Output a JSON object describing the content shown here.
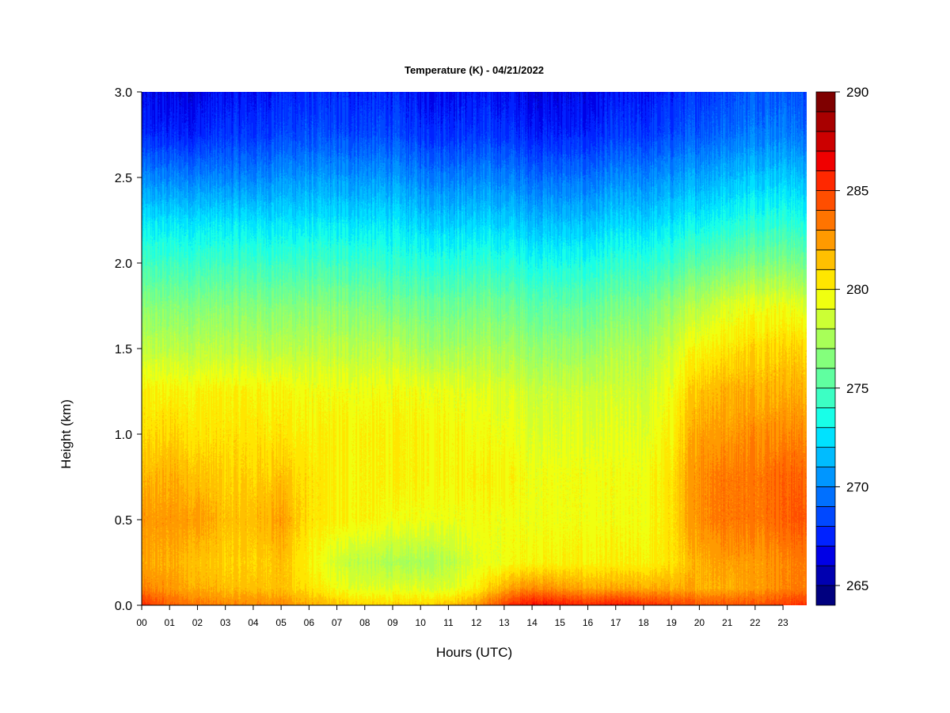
{
  "chart_data": {
    "type": "heatmap",
    "title": "Temperature (K) - 04/21/2022",
    "xlabel": "Hours (UTC)",
    "ylabel": "Height (km)",
    "x_ticks": [
      "00",
      "01",
      "02",
      "03",
      "04",
      "05",
      "06",
      "07",
      "08",
      "09",
      "10",
      "11",
      "12",
      "13",
      "14",
      "15",
      "16",
      "17",
      "18",
      "19",
      "20",
      "21",
      "22",
      "23"
    ],
    "xlim": [
      0,
      23.85
    ],
    "y_ticks": [
      "0.0",
      "0.5",
      "1.0",
      "1.5",
      "2.0",
      "2.5",
      "3.0"
    ],
    "ylim": [
      0,
      3.0
    ],
    "colorbar": {
      "min": 264,
      "max": 290,
      "step": 1,
      "tick_labels": [
        "265",
        "270",
        "275",
        "280",
        "285",
        "290"
      ],
      "tick_values": [
        265,
        270,
        275,
        280,
        285,
        290
      ],
      "colors": [
        "#00007f",
        "#0000b0",
        "#0000e6",
        "#0022ff",
        "#0048ff",
        "#0070ff",
        "#0096ff",
        "#00bcff",
        "#00e2ff",
        "#18ffe8",
        "#3cffc4",
        "#60ffa0",
        "#84ff7c",
        "#a8ff58",
        "#ccff34",
        "#f0ff10",
        "#ffe600",
        "#ffc000",
        "#ff9a00",
        "#ff7400",
        "#ff4e00",
        "#ff2800",
        "#f00000",
        "#cc0000",
        "#a80000",
        "#7f0000"
      ]
    },
    "temperature_grid": {
      "description_units": "K",
      "heights_km": [
        0.0,
        0.1,
        0.25,
        0.5,
        0.75,
        1.0,
        1.25,
        1.5,
        1.75,
        2.0,
        2.25,
        2.5,
        2.75,
        3.0
      ],
      "hours": [
        0,
        1,
        2,
        3,
        4,
        5,
        6,
        7,
        8,
        9,
        10,
        11,
        12,
        13,
        14,
        15,
        16,
        17,
        18,
        19,
        20,
        21,
        22,
        23,
        23.85
      ],
      "values": [
        [
          285.5,
          284.0,
          283.5,
          283.0,
          283.0,
          283.0,
          282.0,
          281.5,
          281.0,
          281.0,
          281.0,
          281.5,
          282.5,
          285.0,
          286.5,
          286.0,
          285.5,
          286.0,
          285.5,
          285.0,
          284.5,
          284.5,
          284.5,
          285.0,
          285.5
        ],
        [
          283.0,
          282.5,
          282.0,
          281.5,
          281.5,
          281.5,
          280.5,
          279.5,
          279.0,
          279.0,
          279.0,
          279.0,
          280.0,
          282.0,
          283.0,
          282.5,
          282.0,
          282.0,
          282.0,
          282.0,
          282.0,
          282.0,
          282.5,
          283.0,
          283.5
        ],
        [
          282.0,
          282.0,
          281.5,
          281.0,
          281.0,
          281.5,
          280.0,
          278.5,
          278.0,
          277.5,
          277.5,
          278.0,
          279.0,
          279.5,
          280.0,
          280.0,
          280.0,
          280.0,
          280.0,
          280.5,
          282.0,
          282.5,
          282.5,
          283.0,
          283.5
        ],
        [
          282.5,
          282.5,
          282.5,
          281.5,
          281.5,
          282.5,
          280.5,
          280.0,
          280.0,
          279.5,
          279.5,
          279.5,
          279.5,
          279.5,
          279.5,
          279.5,
          279.5,
          279.5,
          279.5,
          280.5,
          283.0,
          283.5,
          283.5,
          284.0,
          284.5
        ],
        [
          281.5,
          282.0,
          281.5,
          281.0,
          281.0,
          281.5,
          280.5,
          280.0,
          280.0,
          280.0,
          280.0,
          280.0,
          280.0,
          280.0,
          279.5,
          279.5,
          279.5,
          279.5,
          279.5,
          280.5,
          283.0,
          283.5,
          283.5,
          284.0,
          284.0
        ],
        [
          280.5,
          281.0,
          280.5,
          280.5,
          280.5,
          280.5,
          280.0,
          280.0,
          280.0,
          280.0,
          280.0,
          280.0,
          279.5,
          279.5,
          279.0,
          279.0,
          279.0,
          279.0,
          279.0,
          280.0,
          282.5,
          282.5,
          283.0,
          283.0,
          283.0
        ],
        [
          280.0,
          280.0,
          280.0,
          280.0,
          280.0,
          280.0,
          279.5,
          279.5,
          279.5,
          279.5,
          279.5,
          279.5,
          279.0,
          279.0,
          278.5,
          278.5,
          278.5,
          278.5,
          278.5,
          279.5,
          281.5,
          282.0,
          282.0,
          282.0,
          282.0
        ],
        [
          278.0,
          278.0,
          278.0,
          278.0,
          278.0,
          278.0,
          278.0,
          278.0,
          278.0,
          278.0,
          277.5,
          277.5,
          277.5,
          277.5,
          277.0,
          277.0,
          277.0,
          277.5,
          277.5,
          278.5,
          280.0,
          280.5,
          281.0,
          281.0,
          281.0
        ],
        [
          276.5,
          276.5,
          276.5,
          276.5,
          276.5,
          276.5,
          276.5,
          276.5,
          276.5,
          276.0,
          276.0,
          276.0,
          276.0,
          276.0,
          275.5,
          275.5,
          275.5,
          276.0,
          276.0,
          277.0,
          278.0,
          279.0,
          279.5,
          279.5,
          279.0
        ],
        [
          274.5,
          274.5,
          274.5,
          274.5,
          274.5,
          274.5,
          274.5,
          274.5,
          274.5,
          274.0,
          274.0,
          274.0,
          274.0,
          274.0,
          273.5,
          273.5,
          273.5,
          274.0,
          274.0,
          274.5,
          275.5,
          276.0,
          276.5,
          276.5,
          276.0
        ],
        [
          272.5,
          272.5,
          272.5,
          272.5,
          272.5,
          272.5,
          272.5,
          272.5,
          272.5,
          272.5,
          272.0,
          272.0,
          272.0,
          272.0,
          271.5,
          271.5,
          271.5,
          272.0,
          272.0,
          272.5,
          273.0,
          273.5,
          274.0,
          274.0,
          273.5
        ],
        [
          270.0,
          270.0,
          270.0,
          270.0,
          270.0,
          270.5,
          270.5,
          270.5,
          270.5,
          270.5,
          270.0,
          270.0,
          270.0,
          270.0,
          269.5,
          269.5,
          269.5,
          270.0,
          270.0,
          270.5,
          271.0,
          271.5,
          272.0,
          272.0,
          271.5
        ],
        [
          267.5,
          267.5,
          267.5,
          268.0,
          268.0,
          268.5,
          268.5,
          268.5,
          268.5,
          268.5,
          268.0,
          268.0,
          268.0,
          268.0,
          267.5,
          267.5,
          267.5,
          268.0,
          268.0,
          268.5,
          269.0,
          269.5,
          270.0,
          270.0,
          269.5
        ],
        [
          266.5,
          266.5,
          266.5,
          267.0,
          267.0,
          267.5,
          267.5,
          267.5,
          267.5,
          267.5,
          267.0,
          267.0,
          267.0,
          267.0,
          266.5,
          266.5,
          266.5,
          267.0,
          267.0,
          267.5,
          268.0,
          268.5,
          269.0,
          269.0,
          268.5
        ]
      ]
    }
  }
}
